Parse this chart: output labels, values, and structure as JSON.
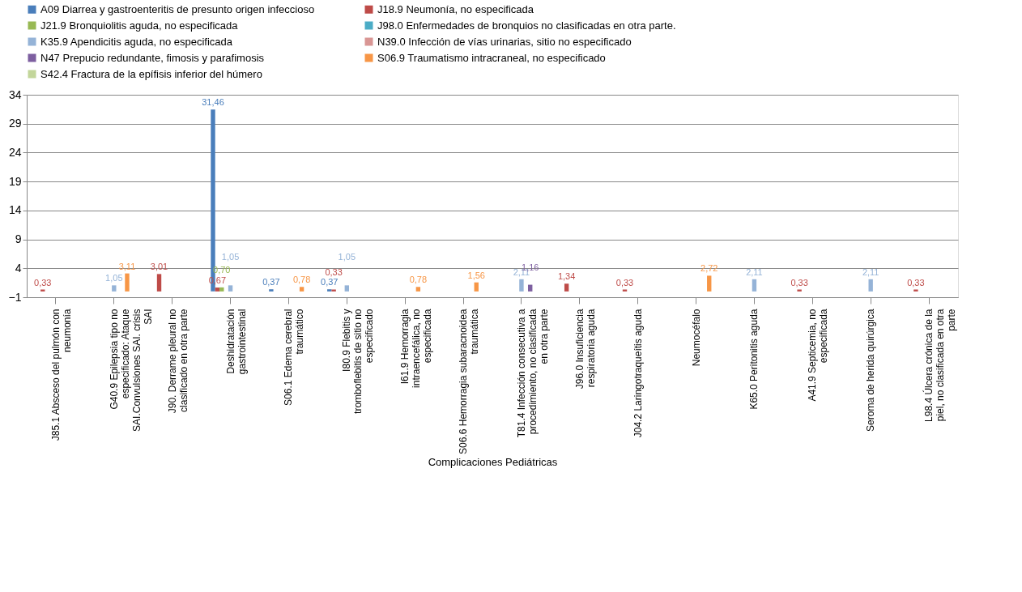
{
  "chart_data": {
    "type": "bar",
    "xlabel": "Complicaciones Pediátricas",
    "categories": [
      "J85.1 Absceso del pulmón con neumonía",
      "G40.9 Epilepsia tipo no especificado: Ataque SAI.Convulsiones SAI. crisis SAI",
      "J90. Derrame pleural no clasificado en otra parte",
      "Deshidratación gastrointestinal",
      "S06.1 Edema cerebral traumático",
      "I80.9 Flebitis y tromboflebitis de sitio no especificado",
      "I61.9 Hemorragia intraencefálica, no especificada",
      "S06.6 Hemorragia subaracnoidea traumática",
      "T81.4 Infección consecutiva a procedimiento, no clasificada en otra parte",
      "J96.0 Insuficiencia respiratoria aguda",
      "J04.2 Laringotraqueítis aguda",
      "Neumocéfalo",
      "K65.0 Peritonitis aguda",
      "A41.9 Septicemia, no especificada",
      "Seroma de herida quirúrgica",
      "L98.4 Úlcera crónica de la piel, no clasificada en otra parte"
    ],
    "series": [
      {
        "name": "A09 Diarrea y gastroenteritis de presunto origen infeccioso",
        "color": "#4a7ebb",
        "values": [
          null,
          null,
          null,
          31.46,
          0.37,
          0.37,
          null,
          null,
          null,
          null,
          null,
          null,
          null,
          null,
          null,
          null
        ],
        "value_labels": [
          null,
          null,
          null,
          "31,46",
          "0,37",
          "0,37",
          null,
          null,
          null,
          null,
          null,
          null,
          null,
          null,
          null,
          null
        ]
      },
      {
        "name": "J18.9 Neumonía, no especificada",
        "color": "#be4b48",
        "values": [
          0.33,
          null,
          3.01,
          0.67,
          null,
          0.33,
          null,
          null,
          null,
          1.34,
          0.33,
          null,
          null,
          0.33,
          null,
          0.33
        ],
        "value_labels": [
          "0,33",
          null,
          "3,01",
          "0,67",
          null,
          "0,33",
          null,
          null,
          null,
          "1,34",
          "0,33",
          null,
          null,
          "0,33",
          null,
          "0,33"
        ]
      },
      {
        "name": "J21.9 Bronquiolitis aguda, no especificada",
        "color": "#98b954",
        "values": [
          null,
          null,
          null,
          0.7,
          null,
          null,
          null,
          null,
          null,
          null,
          null,
          null,
          null,
          null,
          null,
          null
        ],
        "value_labels": [
          null,
          null,
          null,
          "0,70",
          null,
          null,
          null,
          null,
          null,
          null,
          null,
          null,
          null,
          null,
          null,
          null
        ]
      },
      {
        "name": "J98.0 Enfermedades de bronquios no clasificadas en otra parte.",
        "color": "#4bacc6",
        "values": [
          null,
          null,
          null,
          null,
          null,
          null,
          null,
          null,
          null,
          null,
          null,
          null,
          null,
          null,
          null,
          null
        ]
      },
      {
        "name": "K35.9 Apendicitis aguda, no especificada",
        "color": "#95b3d7",
        "values": [
          null,
          1.05,
          null,
          1.05,
          null,
          1.05,
          null,
          null,
          2.11,
          null,
          null,
          null,
          2.11,
          null,
          2.11,
          null
        ],
        "value_labels": [
          null,
          "1,05",
          null,
          "1,05",
          null,
          "1,05",
          null,
          null,
          "2,11",
          null,
          null,
          null,
          "2,11",
          null,
          "2,11",
          null
        ]
      },
      {
        "name": "N39.0 Infección de vías urinarias, sitio no especificado",
        "color": "#d99694",
        "values": [
          null,
          null,
          null,
          null,
          null,
          null,
          null,
          null,
          null,
          null,
          null,
          null,
          null,
          null,
          null,
          null
        ]
      },
      {
        "name": "N47 Prepucio redundante, fimosis y parafimosis",
        "color": "#7d5fa0",
        "values": [
          null,
          null,
          null,
          null,
          null,
          null,
          null,
          null,
          1.16,
          null,
          null,
          null,
          null,
          null,
          null,
          null
        ],
        "value_labels": [
          null,
          null,
          null,
          null,
          null,
          null,
          null,
          null,
          "1,16",
          null,
          null,
          null,
          null,
          null,
          null,
          null
        ]
      },
      {
        "name": "S06.9  Traumatismo intracraneal, no especificado",
        "color": "#f79646",
        "values": [
          null,
          3.11,
          null,
          null,
          0.78,
          null,
          0.78,
          1.56,
          null,
          null,
          null,
          2.72,
          null,
          null,
          null,
          null
        ],
        "value_labels": [
          null,
          "3,11",
          null,
          null,
          "0,78",
          null,
          "0,78",
          "1,56",
          null,
          null,
          null,
          "2,72",
          null,
          null,
          null,
          null
        ]
      },
      {
        "name": "S42.4 Fractura de la epífisis inferior del húmero",
        "color": "#c3d69b",
        "values": [
          null,
          null,
          null,
          null,
          null,
          null,
          null,
          null,
          null,
          null,
          null,
          null,
          null,
          null,
          null,
          null
        ]
      }
    ],
    "ylim": [
      -1,
      34
    ],
    "yticks": [
      -1,
      4,
      9,
      14,
      19,
      24,
      29,
      34
    ],
    "grid": "y",
    "legend": "top"
  }
}
